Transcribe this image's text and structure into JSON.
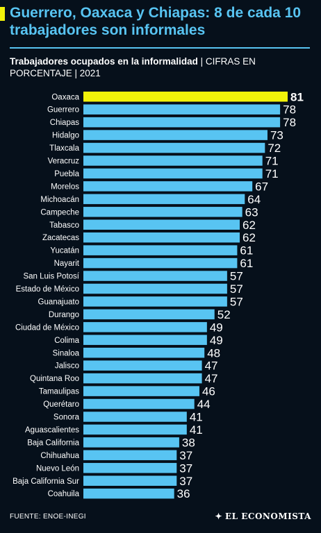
{
  "header": {
    "title": "Guerrero, Oaxaca y Chiapas: 8 de cada 10 trabajadores son informales",
    "subtitle_bold": "Trabajadores ocupados en la informalidad",
    "subtitle_light": " | CIFRAS EN PORCENTAJE | 2021"
  },
  "footer": {
    "source": "FUENTE: ENOE-INEGI",
    "brand": "EL ECONOMISTA",
    "brand_icon": "eagle-emblem-icon"
  },
  "colors": {
    "background": "#06101b",
    "bar": "#58c4f2",
    "highlight": "#f2f20a",
    "title": "#58c4f2",
    "text": "#ffffff"
  },
  "chart_data": {
    "type": "bar",
    "orientation": "horizontal",
    "title": "Trabajadores ocupados en la informalidad",
    "xlabel": "",
    "ylabel": "",
    "grid": false,
    "xlim": [
      0,
      81
    ],
    "highlight_category": "Oaxaca",
    "categories": [
      "Oaxaca",
      "Guerrero",
      "Chiapas",
      "Hidalgo",
      "Tlaxcala",
      "Veracruz",
      "Puebla",
      "Morelos",
      "Michoacán",
      "Campeche",
      "Tabasco",
      "Zacatecas",
      "Yucatán",
      "Nayarit",
      "San Luis Potosí",
      "Estado de México",
      "Guanajuato",
      "Durango",
      "Ciudad de México",
      "Colima",
      "Sinaloa",
      "Jalisco",
      "Quintana Roo",
      "Tamaulipas",
      "Querétaro",
      "Sonora",
      "Aguascalientes",
      "Baja California",
      "Chihuahua",
      "Nuevo León",
      "Baja California Sur",
      "Coahuila"
    ],
    "values": [
      81,
      78,
      78,
      73,
      72,
      71,
      71,
      67,
      64,
      63,
      62,
      62,
      61,
      61,
      57,
      57,
      57,
      52,
      49,
      49,
      48,
      47,
      47,
      46,
      44,
      41,
      41,
      38,
      37,
      37,
      37,
      36
    ]
  }
}
